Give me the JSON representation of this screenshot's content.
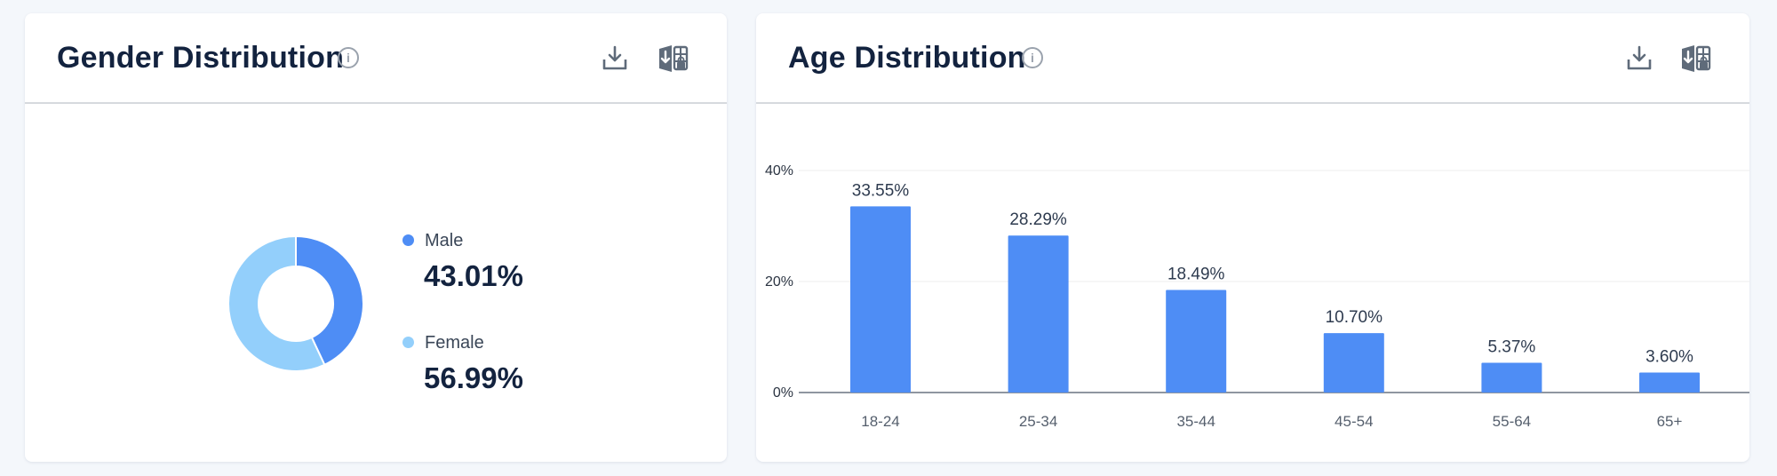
{
  "colors": {
    "male": "#4e8df5",
    "female": "#93cffb",
    "bar": "#4e8df5",
    "grid": "#ececec",
    "axis": "#8f96a0"
  },
  "gender_card": {
    "title": "Gender Distribution",
    "info_icon": "info-icon",
    "download_icon": "download-icon",
    "export_icon": "export-table-icon",
    "legend": [
      {
        "label": "Male",
        "value": "43.01%"
      },
      {
        "label": "Female",
        "value": "56.99%"
      }
    ]
  },
  "age_card": {
    "title": "Age Distribution",
    "info_icon": "info-icon",
    "download_icon": "download-icon",
    "export_icon": "export-table-icon"
  },
  "chart_data": [
    {
      "type": "pie",
      "variant": "donut",
      "title": "Gender Distribution",
      "categories": [
        "Male",
        "Female"
      ],
      "values": [
        43.01,
        56.99
      ],
      "legend": "right"
    },
    {
      "type": "bar",
      "title": "Age Distribution",
      "categories": [
        "18-24",
        "25-34",
        "35-44",
        "45-54",
        "55-64",
        "65+"
      ],
      "values": [
        33.55,
        28.29,
        18.49,
        10.7,
        5.37,
        3.6
      ],
      "data_labels": [
        "33.55%",
        "28.29%",
        "18.49%",
        "10.70%",
        "5.37%",
        "3.60%"
      ],
      "yticks": [
        "0%",
        "20%",
        "40%"
      ],
      "ytick_values": [
        0,
        20,
        40
      ],
      "ylim": [
        0,
        40
      ],
      "xlabel": "",
      "ylabel": "",
      "grid": true
    }
  ]
}
